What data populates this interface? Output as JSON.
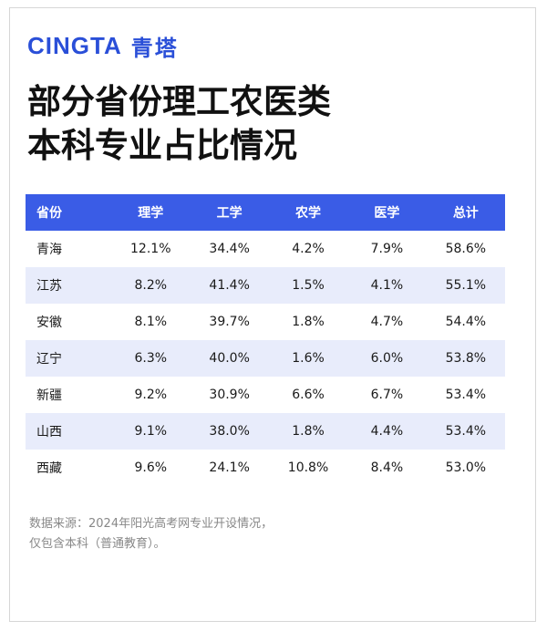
{
  "brand": {
    "en": "CINGTA",
    "cn": "青塔"
  },
  "title": {
    "line1": "部分省份理工农医类",
    "line2": "本科专业占比情况"
  },
  "table": {
    "headers": [
      "省份",
      "理学",
      "工学",
      "农学",
      "医学",
      "总计"
    ],
    "rows": [
      [
        "青海",
        "12.1%",
        "34.4%",
        "4.2%",
        "7.9%",
        "58.6%"
      ],
      [
        "江苏",
        "8.2%",
        "41.4%",
        "1.5%",
        "4.1%",
        "55.1%"
      ],
      [
        "安徽",
        "8.1%",
        "39.7%",
        "1.8%",
        "4.7%",
        "54.4%"
      ],
      [
        "辽宁",
        "6.3%",
        "40.0%",
        "1.6%",
        "6.0%",
        "53.8%"
      ],
      [
        "新疆",
        "9.2%",
        "30.9%",
        "6.6%",
        "6.7%",
        "53.4%"
      ],
      [
        "山西",
        "9.1%",
        "38.0%",
        "1.8%",
        "4.4%",
        "53.4%"
      ],
      [
        "西藏",
        "9.6%",
        "24.1%",
        "10.8%",
        "8.4%",
        "53.0%"
      ]
    ]
  },
  "watermark": "CINGTA",
  "footer": {
    "line1": "数据来源：2024年阳光高考网专业开设情况，",
    "line2": "仅包含本科（普通教育）。"
  },
  "colors": {
    "accent": "#3a5ce6",
    "brand": "#2a4fd8",
    "stripe": "#e8ecfb"
  }
}
